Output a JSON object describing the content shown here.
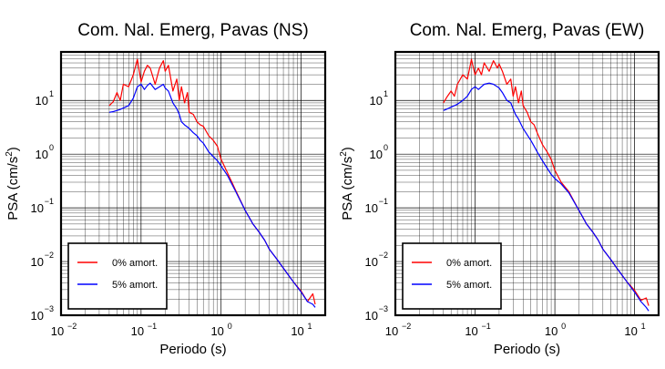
{
  "colors": {
    "red": "#ff0000",
    "blue": "#0000ff",
    "grid": "#000000"
  },
  "chart_data": [
    {
      "type": "line",
      "title": "Com. Nal. Emerg, Pavas (NS)",
      "xlabel": "Periodo (s)",
      "ylabel": "PSA (cm/s2)",
      "ylabel_main": "PSA (cm/s",
      "ylabel_sup": "2",
      "ylabel_tail": ")",
      "xscale": "log",
      "yscale": "log",
      "xlim": [
        0.01,
        20
      ],
      "ylim": [
        0.001,
        80
      ],
      "grid": true,
      "legend_position": "bottom-left",
      "xticks": [
        {
          "base": "10",
          "exp": "−2",
          "value": 0.01
        },
        {
          "base": "10",
          "exp": "−1",
          "value": 0.1
        },
        {
          "base": "10",
          "exp": "0",
          "value": 1
        },
        {
          "base": "10",
          "exp": "1",
          "value": 10
        }
      ],
      "yticks": [
        {
          "base": "10",
          "exp": "−3",
          "value": 0.001
        },
        {
          "base": "10",
          "exp": "−2",
          "value": 0.01
        },
        {
          "base": "10",
          "exp": "−1",
          "value": 0.1
        },
        {
          "base": "10",
          "exp": "0",
          "value": 1
        },
        {
          "base": "10",
          "exp": "1",
          "value": 10
        }
      ],
      "series": [
        {
          "name": "0% amort.",
          "color": "#ff0000",
          "x": [
            0.04,
            0.045,
            0.05,
            0.055,
            0.06,
            0.07,
            0.08,
            0.09,
            0.1,
            0.11,
            0.12,
            0.13,
            0.15,
            0.17,
            0.19,
            0.2,
            0.22,
            0.25,
            0.28,
            0.3,
            0.32,
            0.35,
            0.38,
            0.4,
            0.45,
            0.5,
            0.55,
            0.6,
            0.7,
            0.8,
            0.9,
            1.0,
            1.2,
            1.5,
            2.0,
            2.5,
            3.0,
            3.5,
            4.0,
            5.0,
            6.0,
            7.0,
            8.0,
            10.0,
            12.0,
            14.0,
            15.0
          ],
          "y": [
            8.0,
            9.5,
            14.0,
            10.0,
            20.0,
            18.0,
            30.0,
            58.0,
            22.0,
            35.0,
            45.0,
            40.0,
            20.0,
            40.0,
            55.0,
            35.0,
            45.0,
            15.0,
            25.0,
            10.0,
            18.0,
            9.0,
            14.0,
            6.0,
            5.5,
            4.0,
            3.5,
            3.3,
            2.2,
            1.8,
            1.4,
            0.8,
            0.45,
            0.22,
            0.09,
            0.05,
            0.035,
            0.025,
            0.017,
            0.011,
            0.0075,
            0.0055,
            0.0042,
            0.0028,
            0.0018,
            0.0025,
            0.0016
          ]
        },
        {
          "name": "5% amort.",
          "color": "#0000ff",
          "x": [
            0.04,
            0.045,
            0.05,
            0.055,
            0.06,
            0.07,
            0.08,
            0.09,
            0.1,
            0.11,
            0.12,
            0.13,
            0.15,
            0.17,
            0.19,
            0.2,
            0.22,
            0.25,
            0.28,
            0.3,
            0.32,
            0.35,
            0.38,
            0.4,
            0.45,
            0.5,
            0.55,
            0.6,
            0.7,
            0.8,
            0.9,
            1.0,
            1.2,
            1.5,
            2.0,
            2.5,
            3.0,
            3.5,
            4.0,
            5.0,
            6.0,
            7.0,
            8.0,
            10.0,
            12.0,
            14.0,
            15.0
          ],
          "y": [
            6.0,
            6.2,
            6.5,
            6.8,
            7.2,
            8.0,
            11.0,
            18.0,
            20.0,
            16.0,
            19.0,
            21.0,
            16.0,
            18.0,
            20.0,
            17.0,
            15.0,
            9.0,
            7.0,
            5.5,
            4.0,
            3.5,
            3.2,
            3.0,
            2.5,
            2.2,
            1.8,
            1.6,
            1.1,
            0.9,
            0.75,
            0.6,
            0.4,
            0.21,
            0.09,
            0.05,
            0.035,
            0.025,
            0.017,
            0.011,
            0.0075,
            0.0055,
            0.0042,
            0.0027,
            0.0018,
            0.0016,
            0.0014
          ]
        }
      ]
    },
    {
      "type": "line",
      "title": "Com. Nal. Emerg, Pavas (EW)",
      "xlabel": "Periodo (s)",
      "ylabel": "PSA (cm/s2)",
      "ylabel_main": "PSA (cm/s",
      "ylabel_sup": "2",
      "ylabel_tail": ")",
      "xscale": "log",
      "yscale": "log",
      "xlim": [
        0.01,
        20
      ],
      "ylim": [
        0.001,
        80
      ],
      "grid": true,
      "legend_position": "bottom-left",
      "xticks": [
        {
          "base": "10",
          "exp": "−2",
          "value": 0.01
        },
        {
          "base": "10",
          "exp": "−1",
          "value": 0.1
        },
        {
          "base": "10",
          "exp": "0",
          "value": 1
        },
        {
          "base": "10",
          "exp": "1",
          "value": 10
        }
      ],
      "yticks": [
        {
          "base": "10",
          "exp": "−3",
          "value": 0.001
        },
        {
          "base": "10",
          "exp": "−2",
          "value": 0.01
        },
        {
          "base": "10",
          "exp": "−1",
          "value": 0.1
        },
        {
          "base": "10",
          "exp": "0",
          "value": 1
        },
        {
          "base": "10",
          "exp": "1",
          "value": 10
        }
      ],
      "series": [
        {
          "name": "0% amort.",
          "color": "#ff0000",
          "x": [
            0.04,
            0.045,
            0.05,
            0.055,
            0.06,
            0.07,
            0.08,
            0.09,
            0.1,
            0.11,
            0.12,
            0.13,
            0.15,
            0.17,
            0.19,
            0.2,
            0.22,
            0.25,
            0.28,
            0.3,
            0.32,
            0.35,
            0.38,
            0.4,
            0.45,
            0.5,
            0.55,
            0.6,
            0.7,
            0.8,
            0.9,
            1.0,
            1.2,
            1.5,
            2.0,
            2.5,
            3.0,
            3.5,
            4.0,
            5.0,
            6.0,
            7.0,
            8.0,
            10.0,
            12.0,
            14.0,
            15.0
          ],
          "y": [
            9.0,
            12.0,
            15.0,
            12.0,
            20.0,
            30.0,
            25.0,
            58.0,
            30.0,
            40.0,
            30.0,
            50.0,
            35.0,
            55.0,
            40.0,
            48.0,
            35.0,
            20.0,
            25.0,
            12.0,
            18.0,
            9.0,
            15.0,
            8.0,
            6.0,
            4.0,
            3.5,
            2.5,
            1.5,
            1.1,
            0.8,
            0.5,
            0.3,
            0.2,
            0.09,
            0.05,
            0.035,
            0.025,
            0.017,
            0.011,
            0.0075,
            0.0055,
            0.0042,
            0.0029,
            0.0019,
            0.0021,
            0.0015
          ]
        },
        {
          "name": "5% amort.",
          "color": "#0000ff",
          "x": [
            0.04,
            0.045,
            0.05,
            0.055,
            0.06,
            0.07,
            0.08,
            0.09,
            0.1,
            0.11,
            0.12,
            0.13,
            0.15,
            0.17,
            0.19,
            0.2,
            0.22,
            0.25,
            0.28,
            0.3,
            0.32,
            0.35,
            0.38,
            0.4,
            0.45,
            0.5,
            0.55,
            0.6,
            0.7,
            0.8,
            0.9,
            1.0,
            1.2,
            1.5,
            2.0,
            2.5,
            3.0,
            3.5,
            4.0,
            5.0,
            6.0,
            7.0,
            8.0,
            10.0,
            12.0,
            14.0,
            15.0
          ],
          "y": [
            6.5,
            7.0,
            7.5,
            8.0,
            8.5,
            10.0,
            12.0,
            16.0,
            18.0,
            16.0,
            18.0,
            20.0,
            21.0,
            20.0,
            18.0,
            17.0,
            14.0,
            10.0,
            9.0,
            7.0,
            5.5,
            4.5,
            3.5,
            3.0,
            2.3,
            1.8,
            1.4,
            1.1,
            0.75,
            0.55,
            0.42,
            0.35,
            0.28,
            0.19,
            0.09,
            0.05,
            0.035,
            0.025,
            0.017,
            0.011,
            0.0075,
            0.0055,
            0.0042,
            0.0027,
            0.0018,
            0.0014,
            0.0012
          ]
        }
      ]
    }
  ]
}
